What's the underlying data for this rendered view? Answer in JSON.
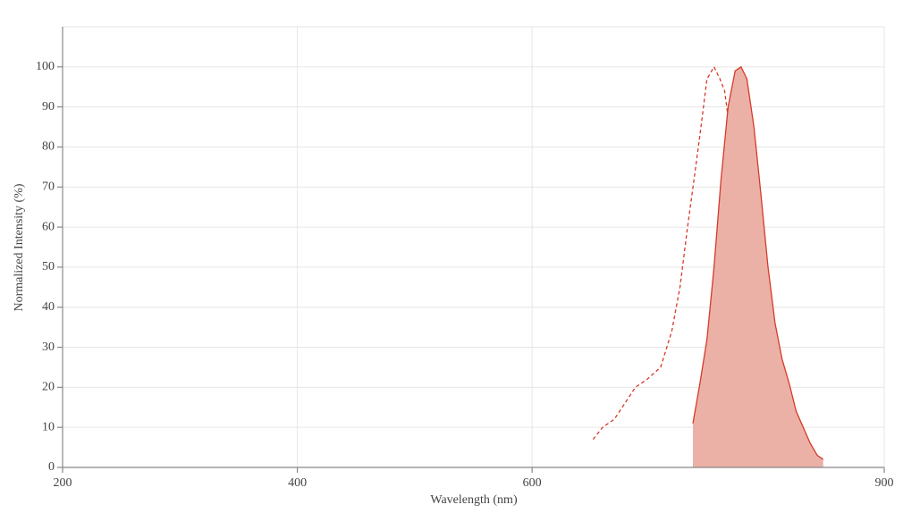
{
  "chart_data": {
    "type": "line",
    "x_label": "Wavelength (nm)",
    "y_label": "Normalized Intensity (%)",
    "xlim": [
      200,
      900
    ],
    "xticks": [
      200,
      400,
      600,
      900
    ],
    "ylim": [
      0,
      110
    ],
    "yticks": [
      0,
      10,
      20,
      30,
      40,
      50,
      60,
      70,
      80,
      90,
      100
    ],
    "grid": true,
    "series": [
      {
        "color": "#d63a2a",
        "dashed": true,
        "filled": false,
        "x": [
          652,
          660,
          670,
          679,
          688,
          698,
          709.5,
          719,
          726,
          732,
          738,
          743,
          749,
          755,
          760,
          764,
          769,
          775,
          781,
          787,
          793,
          798
        ],
        "values": [
          7,
          10,
          12,
          16,
          20,
          22,
          25,
          34,
          45,
          59,
          72,
          83,
          97,
          100,
          97,
          94,
          83,
          63,
          45,
          30,
          21,
          14
        ]
      },
      {
        "color": "#d63a2a",
        "dashed": false,
        "filled": true,
        "fill_color": "#ebb1a6",
        "x": [
          737,
          743,
          749,
          755,
          761,
          767,
          773,
          778,
          783,
          789,
          795,
          801,
          807,
          813,
          819,
          825,
          831,
          837,
          843,
          848
        ],
        "values": [
          11,
          21,
          32,
          50,
          72,
          90,
          99,
          100,
          97,
          85,
          68,
          50,
          36,
          27,
          21,
          14,
          10,
          6,
          3,
          2
        ]
      }
    ]
  }
}
